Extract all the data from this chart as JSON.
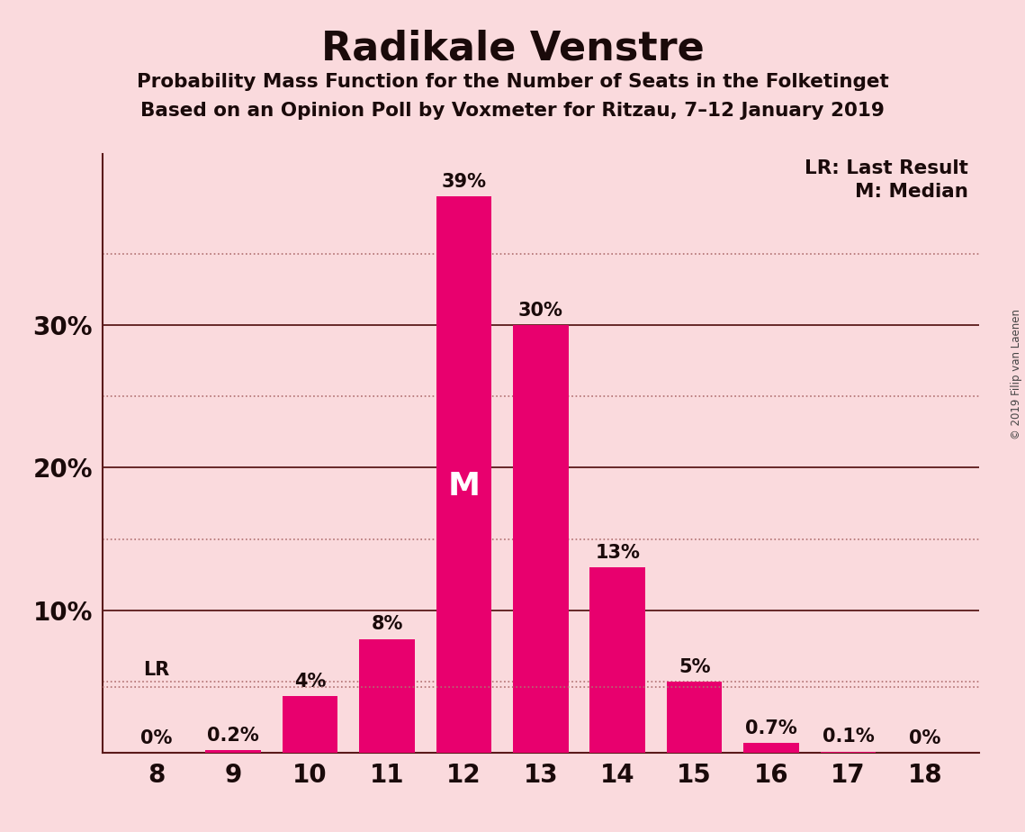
{
  "title": "Radikale Venstre",
  "subtitle1": "Probability Mass Function for the Number of Seats in the Folketinget",
  "subtitle2": "Based on an Opinion Poll by Voxmeter for Ritzau, 7–12 January 2019",
  "seats": [
    8,
    9,
    10,
    11,
    12,
    13,
    14,
    15,
    16,
    17,
    18
  ],
  "values": [
    0.0,
    0.2,
    4.0,
    8.0,
    39.0,
    30.0,
    13.0,
    5.0,
    0.7,
    0.1,
    0.0
  ],
  "labels": [
    "0%",
    "0.2%",
    "4%",
    "8%",
    "39%",
    "30%",
    "13%",
    "5%",
    "0.7%",
    "0.1%",
    "0%"
  ],
  "bar_color": "#E8006E",
  "background_color": "#FADADD",
  "text_color": "#1a0a0a",
  "grid_solid_color": "#5a1a1a",
  "grid_dot_color": "#b07070",
  "median_seat": 12,
  "last_result_value": 4.6,
  "lr_label": "LR",
  "median_label": "M",
  "legend_lr": "LR: Last Result",
  "legend_m": "M: Median",
  "copyright": "© 2019 Filip van Laenen",
  "ylim_max": 42,
  "solid_gridlines": [
    10,
    20,
    30
  ],
  "dot_gridlines": [
    5,
    15,
    25,
    35
  ],
  "lr_dotted_line": 4.6
}
